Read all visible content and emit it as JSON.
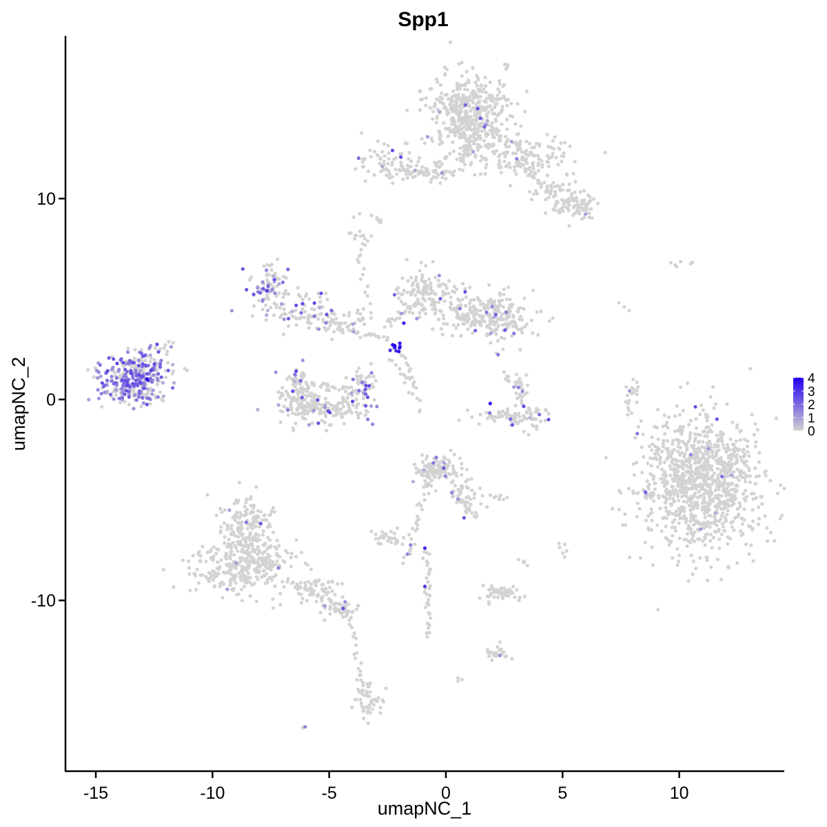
{
  "chart_data": {
    "type": "scatter",
    "title": "Spp1",
    "xlabel": "umapNC_1",
    "ylabel": "umapNC_2",
    "xlim": [
      -16.3,
      14.5
    ],
    "ylim": [
      -18.5,
      18.1
    ],
    "x_ticks": [
      {
        "value": -15,
        "label": "-15"
      },
      {
        "value": -10,
        "label": "-10"
      },
      {
        "value": -5,
        "label": "-5"
      },
      {
        "value": 0,
        "label": "0"
      },
      {
        "value": 5,
        "label": "5"
      },
      {
        "value": 10,
        "label": "10"
      }
    ],
    "y_ticks": [
      {
        "value": 10,
        "label": "10"
      },
      {
        "value": 0,
        "label": "0"
      },
      {
        "value": -10,
        "label": "-10"
      }
    ],
    "grid": false,
    "legend": {
      "placement": "right",
      "type": "continuous",
      "min": 0,
      "max": 4,
      "labels": [
        "0",
        "1",
        "2",
        "3",
        "4"
      ],
      "low_color": "#d3d3d3",
      "high_color": "#2200ee"
    },
    "clusters": [
      {
        "cx": 10.9,
        "cy": -4.3,
        "sx": 1.3,
        "sy": 1.7,
        "n": 900,
        "expr": 0.02
      },
      {
        "cx": 11.3,
        "cy": -2.6,
        "sx": 1.0,
        "sy": 0.9,
        "n": 150,
        "expr": 0.02
      },
      {
        "cx": 1.0,
        "cy": 14.4,
        "sx": 0.9,
        "sy": 0.9,
        "n": 400,
        "expr": 0.01
      },
      {
        "cx": 1.0,
        "cy": 12.9,
        "sx": 0.7,
        "sy": 0.6,
        "n": 100,
        "expr": 0.01
      },
      {
        "cx": 3.5,
        "cy": 12.0,
        "sx": 1.2,
        "sy": 0.5,
        "n": 120,
        "expr": 0.01
      },
      {
        "cx": 5.7,
        "cy": 9.6,
        "sx": 0.4,
        "sy": 0.3,
        "n": 60,
        "expr": 0.01
      },
      {
        "cx": 4.6,
        "cy": 10.2,
        "sx": 0.6,
        "sy": 0.6,
        "n": 50,
        "expr": 0.01
      },
      {
        "cx": -2.6,
        "cy": 11.8,
        "sx": 0.7,
        "sy": 0.45,
        "n": 60,
        "expr": 0.05
      },
      {
        "cx": -0.8,
        "cy": 11.3,
        "sx": 1.0,
        "sy": 0.25,
        "n": 40,
        "expr": 0.01
      },
      {
        "cx": -1.0,
        "cy": 5.4,
        "sx": 0.6,
        "sy": 0.6,
        "n": 120,
        "expr": 0.03
      },
      {
        "cx": 1.5,
        "cy": 4.3,
        "sx": 1.2,
        "sy": 0.55,
        "n": 200,
        "expr": 0.03
      },
      {
        "cx": 2.3,
        "cy": 3.9,
        "sx": 0.5,
        "sy": 0.5,
        "n": 80,
        "expr": 0.02
      },
      {
        "cx": -7.5,
        "cy": 5.5,
        "sx": 0.4,
        "sy": 0.6,
        "n": 80,
        "expr": 0.3
      },
      {
        "cx": -6.2,
        "cy": 4.6,
        "sx": 0.9,
        "sy": 0.45,
        "n": 50,
        "expr": 0.15
      },
      {
        "cx": -4.6,
        "cy": 3.8,
        "sx": 0.9,
        "sy": 0.35,
        "n": 50,
        "expr": 0.1
      },
      {
        "cx": -6.4,
        "cy": 0.8,
        "sx": 0.3,
        "sy": 0.45,
        "n": 50,
        "expr": 0.2
      },
      {
        "cx": -6.1,
        "cy": -0.2,
        "sx": 0.4,
        "sy": 0.4,
        "n": 80,
        "expr": 0.05
      },
      {
        "cx": -4.9,
        "cy": -0.4,
        "sx": 0.9,
        "sy": 0.35,
        "n": 120,
        "expr": 0.05
      },
      {
        "cx": -3.6,
        "cy": 0.6,
        "sx": 0.3,
        "sy": 0.55,
        "n": 60,
        "expr": 0.3
      },
      {
        "cx": -13.6,
        "cy": 0.9,
        "sx": 0.65,
        "sy": 0.6,
        "n": 250,
        "expr": 0.55
      },
      {
        "cx": -12.8,
        "cy": 1.5,
        "sx": 0.45,
        "sy": 0.5,
        "n": 80,
        "expr": 0.5
      },
      {
        "cx": -8.5,
        "cy": -6.3,
        "sx": 0.6,
        "sy": 0.8,
        "n": 180,
        "expr": 0.01
      },
      {
        "cx": -9.0,
        "cy": -8.3,
        "sx": 1.0,
        "sy": 0.7,
        "n": 220,
        "expr": 0.01
      },
      {
        "cx": -7.5,
        "cy": -8.3,
        "sx": 0.6,
        "sy": 0.6,
        "n": 80,
        "expr": 0.01
      },
      {
        "cx": -5.7,
        "cy": -9.4,
        "sx": 0.6,
        "sy": 0.4,
        "n": 50,
        "expr": 0.02
      },
      {
        "cx": -4.5,
        "cy": -10.4,
        "sx": 0.4,
        "sy": 0.25,
        "n": 40,
        "expr": 0.05
      },
      {
        "cx": -3.3,
        "cy": -15.0,
        "sx": 0.3,
        "sy": 0.4,
        "n": 40,
        "expr": 0.01
      },
      {
        "cx": -0.4,
        "cy": -3.5,
        "sx": 0.5,
        "sy": 0.4,
        "n": 120,
        "expr": 0.05
      },
      {
        "cx": 0.9,
        "cy": -4.6,
        "sx": 0.4,
        "sy": 0.5,
        "n": 40,
        "expr": 0.02
      },
      {
        "cx": 2.6,
        "cy": -0.8,
        "sx": 0.7,
        "sy": 0.25,
        "n": 60,
        "expr": 0.05
      },
      {
        "cx": 3.7,
        "cy": -0.9,
        "sx": 0.4,
        "sy": 0.3,
        "n": 30,
        "expr": 0.1
      },
      {
        "cx": 3.2,
        "cy": 0.7,
        "sx": 0.2,
        "sy": 0.4,
        "n": 15,
        "expr": 0.01
      },
      {
        "cx": -2.5,
        "cy": -6.9,
        "sx": 0.35,
        "sy": 0.2,
        "n": 30,
        "expr": 0.01
      },
      {
        "cx": 2.3,
        "cy": -9.7,
        "sx": 0.5,
        "sy": 0.2,
        "n": 40,
        "expr": 0.01
      },
      {
        "cx": 2.3,
        "cy": -12.6,
        "sx": 0.3,
        "sy": 0.2,
        "n": 15,
        "expr": 0.01
      },
      {
        "cx": 9.9,
        "cy": 6.7,
        "sx": 0.15,
        "sy": 0.1,
        "n": 4,
        "expr": 0.0
      },
      {
        "cx": 8.0,
        "cy": 0.4,
        "sx": 0.15,
        "sy": 0.4,
        "n": 12,
        "expr": 0.1
      },
      {
        "cx": -2.2,
        "cy": 2.5,
        "sx": 0.15,
        "sy": 0.15,
        "n": 10,
        "expr": 0.95
      },
      {
        "cx": -3.9,
        "cy": 8.4,
        "sx": 0.2,
        "sy": 0.3,
        "n": 10,
        "expr": 0.0
      },
      {
        "cx": -2.9,
        "cy": 8.9,
        "sx": 0.15,
        "sy": 0.15,
        "n": 6,
        "expr": 0.0
      }
    ],
    "trails": [
      [
        -2.0,
        11.5,
        -0.2,
        11.2,
        25
      ],
      [
        0.8,
        12.0,
        1.1,
        13.4,
        20
      ],
      [
        2.0,
        13.3,
        3.6,
        12.3,
        25
      ],
      [
        3.0,
        11.9,
        5.2,
        9.5,
        35
      ],
      [
        -3.4,
        8.2,
        -3.8,
        6.8,
        10
      ],
      [
        -3.6,
        6.5,
        -3.2,
        4.0,
        10
      ],
      [
        -7.2,
        4.3,
        -4.3,
        3.7,
        25
      ],
      [
        -4.5,
        3.6,
        -2.5,
        3.0,
        20
      ],
      [
        -2.6,
        3.6,
        -1.0,
        5.0,
        20
      ],
      [
        -1.8,
        2.2,
        -1.4,
        1.0,
        10
      ],
      [
        -2.4,
        2.0,
        -1.3,
        0.6,
        10
      ],
      [
        -13.6,
        0.3,
        -12.0,
        0.0,
        20
      ],
      [
        -12.5,
        2.5,
        -11.6,
        2.8,
        8
      ],
      [
        -12.5,
        2.0,
        -11.0,
        1.4,
        6
      ],
      [
        -6.2,
        0.8,
        -3.6,
        0.4,
        30
      ],
      [
        -0.8,
        -4.0,
        -1.7,
        -8.1,
        30
      ],
      [
        -0.8,
        -7.5,
        -0.7,
        -11.8,
        35
      ],
      [
        0.3,
        -4.6,
        1.3,
        -5.9,
        20
      ],
      [
        -6.4,
        -9.2,
        -4.2,
        -10.4,
        30
      ],
      [
        -4.2,
        -10.6,
        -3.7,
        -13.5,
        15
      ],
      [
        -3.7,
        -13.7,
        -3.2,
        -15.3,
        15
      ],
      [
        1.7,
        -9.4,
        2.9,
        -9.6,
        15
      ],
      [
        1.8,
        -12.5,
        2.6,
        -12.8,
        8
      ],
      [
        0.7,
        -13.8,
        0.6,
        -14.0,
        3
      ],
      [
        -6.0,
        -16.3,
        -6.1,
        -16.2,
        3
      ],
      [
        7.8,
        -0.8,
        7.9,
        0.4,
        10
      ],
      [
        7.4,
        4.8,
        7.7,
        4.5,
        3
      ],
      [
        1.9,
        -4.8,
        2.6,
        -4.9,
        8
      ],
      [
        5.0,
        -7.2,
        5.1,
        -7.8,
        6
      ],
      [
        3.2,
        -8.0,
        3.5,
        -8.2,
        5
      ],
      [
        2.5,
        1.3,
        3.4,
        0.2,
        15
      ],
      [
        2.2,
        2.2,
        2.2,
        2.2,
        2
      ],
      [
        10.4,
        6.8,
        10.6,
        6.8,
        2
      ],
      [
        8.1,
        -1.8,
        8.2,
        -1.8,
        1
      ],
      [
        -1.8,
        1.2,
        -1.0,
        -0.6,
        10
      ]
    ]
  }
}
